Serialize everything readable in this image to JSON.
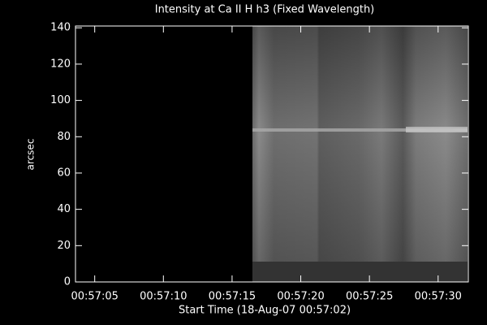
{
  "chart_data": {
    "type": "image",
    "title": "Intensity at Ca II H h3 (Fixed Wavelength)",
    "x_label": "Start Time (18-Aug-07 00:57:02)",
    "y_label": "arcsec",
    "xlim": [
      3.6,
      32.2
    ],
    "xticks": [
      {
        "value": 5,
        "label": "00:57:05"
      },
      {
        "value": 10,
        "label": "00:57:10"
      },
      {
        "value": 15,
        "label": "00:57:15"
      },
      {
        "value": 20,
        "label": "00:57:20"
      },
      {
        "value": 25,
        "label": "00:57:25"
      },
      {
        "value": 30,
        "label": "00:57:30"
      }
    ],
    "ylim": [
      0,
      141
    ],
    "yticks": [
      0,
      20,
      40,
      60,
      80,
      100,
      120,
      140
    ]
  }
}
